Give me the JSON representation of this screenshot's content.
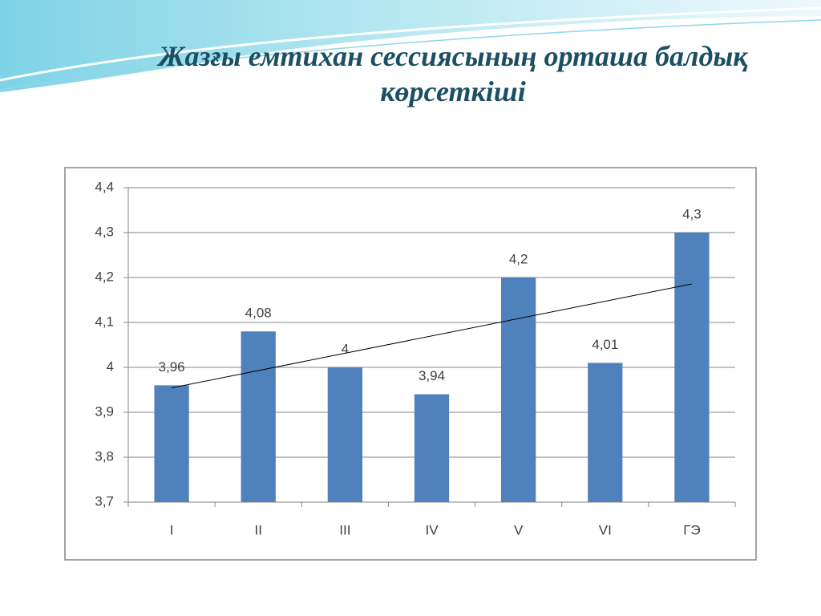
{
  "chart_data": {
    "type": "bar",
    "title": "Жазғы емтихан сессиясының орташа балдық көрсеткіші",
    "categories": [
      "I",
      "II",
      "III",
      "IV",
      "V",
      "VI",
      "ГЭ"
    ],
    "values": [
      3.96,
      4.08,
      4,
      3.94,
      4.2,
      4.01,
      4.3
    ],
    "value_labels": [
      "3,96",
      "4,08",
      "4",
      "3,94",
      "4,2",
      "4,01",
      "4,3"
    ],
    "color": "#4f81bd",
    "ylim": [
      3.7,
      4.4
    ],
    "yticks": [
      {
        "value": 3.7,
        "label": "3,7"
      },
      {
        "value": 3.8,
        "label": "3,8"
      },
      {
        "value": 3.9,
        "label": "3,9"
      },
      4,
      {
        "value": 4.1,
        "label": "4,1"
      },
      {
        "value": 4.2,
        "label": "4,2"
      },
      {
        "value": 4.3,
        "label": "4,3"
      },
      {
        "value": 4.4,
        "label": "4,4"
      }
    ],
    "grid": true,
    "trendline": "linear"
  }
}
